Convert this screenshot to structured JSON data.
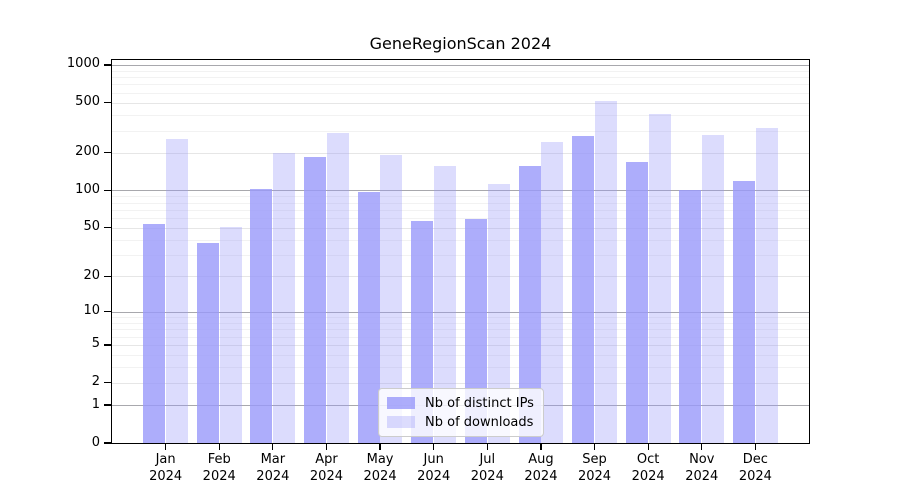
{
  "figure": {
    "title": "GeneRegionScan 2024"
  },
  "chart_data": {
    "type": "bar",
    "title": "GeneRegionScan 2024",
    "categories": [
      "Jan",
      "Feb",
      "Mar",
      "Apr",
      "May",
      "Jun",
      "Jul",
      "Aug",
      "Sep",
      "Oct",
      "Nov",
      "Dec"
    ],
    "year_label": "2024",
    "series": [
      {
        "name": "Nb of distinct IPs",
        "color": "rgba(153,153,250,0.8)",
        "values": [
          54,
          38,
          102,
          184,
          97,
          57,
          59,
          158,
          272,
          170,
          100,
          120
        ]
      },
      {
        "name": "Nb of downloads",
        "color": "rgba(153,153,250,0.34)",
        "values": [
          258,
          51,
          198,
          290,
          192,
          157,
          113,
          245,
          520,
          410,
          278,
          316
        ]
      }
    ],
    "xlabel": "",
    "ylabel": "",
    "yscale": "log1p",
    "yticks": [
      0,
      1,
      2,
      5,
      10,
      20,
      50,
      100,
      200,
      500,
      1000
    ],
    "ylim": [
      0,
      1100
    ],
    "grid": true,
    "legend_position": "lower-center"
  }
}
